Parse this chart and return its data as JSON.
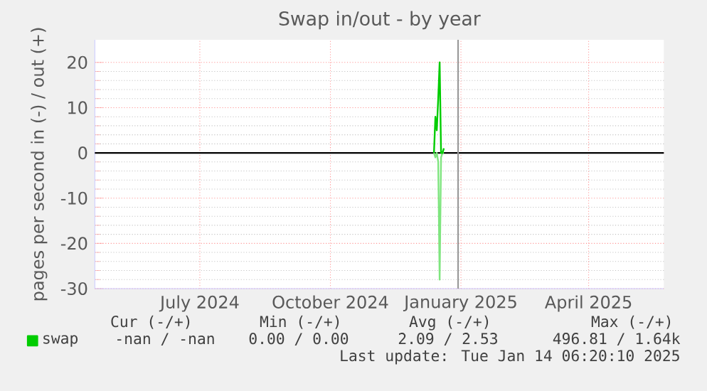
{
  "chart_data": {
    "type": "line",
    "title": "Swap in/out - by year",
    "ylabel": "pages per second in (-) / out (+)",
    "xlim": [
      "2024-05-03",
      "2025-06-08"
    ],
    "xticks": [
      {
        "value": "2024-07-16",
        "label": "July 2024"
      },
      {
        "value": "2024-10-16",
        "label": "October 2024"
      },
      {
        "value": "2025-01-16",
        "label": "January 2025"
      },
      {
        "value": "2025-04-16",
        "label": "April 2025"
      }
    ],
    "ylim": [
      -30,
      25
    ],
    "yticks": [
      -30,
      -20,
      -10,
      0,
      10,
      20
    ],
    "grid": true,
    "legend": "bottom",
    "series": [
      {
        "color": "#7fe57f",
        "x": [
          "2024-12-28",
          "2024-12-29",
          "2024-12-30",
          "2024-12-31",
          "2025-01-01",
          "2025-01-02",
          "2025-01-03",
          "2025-01-04"
        ],
        "values": [
          0,
          -1,
          0,
          -2,
          -28,
          -1,
          0,
          0
        ]
      },
      {
        "name": "swap",
        "color": "#00cc00",
        "x": [
          "2024-12-28",
          "2024-12-29",
          "2024-12-30",
          "2024-12-31",
          "2025-01-01",
          "2025-01-02",
          "2025-01-03",
          "2025-01-04"
        ],
        "values": [
          0,
          8,
          5,
          12,
          20,
          0,
          0,
          1
        ]
      }
    ],
    "ref_lines": [
      {
        "axis": "y",
        "value": 0,
        "color": "#000000"
      },
      {
        "axis": "x",
        "value": "2025-01-14",
        "color": "#999999"
      }
    ],
    "annotations": [
      "Cur (-/+)",
      "Min (-/+)",
      "Avg (-/+)",
      "Max (-/+)",
      "-nan /   -nan",
      "0.00 /  0.00",
      "2.09 /  2.53",
      "496.81 /  1.64k",
      "Last update: Tue Jan 14 06:20:10 2025"
    ]
  }
}
